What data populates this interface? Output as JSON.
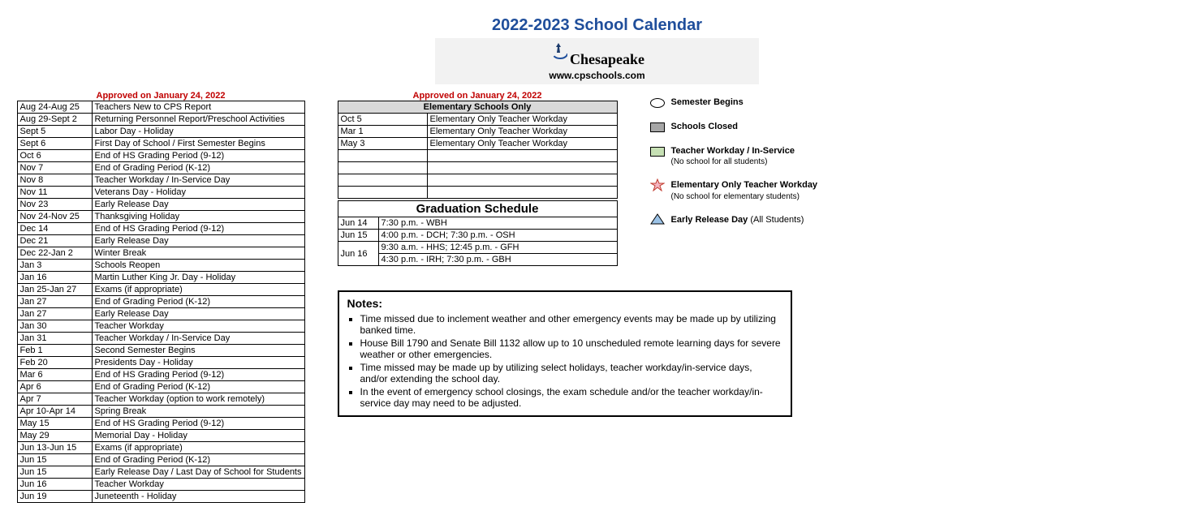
{
  "header": {
    "title": "2022-2023 School Calendar",
    "logo_text": "Chesapeake",
    "site": "www.cpschools.com",
    "approved": "Approved on January 24, 2022"
  },
  "main_events": [
    {
      "date": "Aug 24-Aug 25",
      "desc": "Teachers New to CPS Report"
    },
    {
      "date": "Aug 29-Sept 2",
      "desc": "Returning Personnel Report/Preschool Activities"
    },
    {
      "date": "Sept 5",
      "desc": "Labor Day - Holiday"
    },
    {
      "date": "Sept 6",
      "desc": "First Day of School / First Semester Begins"
    },
    {
      "date": "Oct 6",
      "desc": "End of HS Grading Period (9-12)"
    },
    {
      "date": "Nov 7",
      "desc": "End of Grading Period (K-12)"
    },
    {
      "date": "Nov 8",
      "desc": "Teacher Workday / In-Service Day"
    },
    {
      "date": "Nov 11",
      "desc": "Veterans Day - Holiday"
    },
    {
      "date": "Nov 23",
      "desc": "Early Release Day"
    },
    {
      "date": "Nov 24-Nov 25",
      "desc": "Thanksgiving Holiday"
    },
    {
      "date": "Dec 14",
      "desc": "End of HS Grading Period (9-12)"
    },
    {
      "date": "Dec 21",
      "desc": "Early Release Day"
    },
    {
      "date": "Dec 22-Jan 2",
      "desc": "Winter Break"
    },
    {
      "date": "Jan 3",
      "desc": "Schools Reopen"
    },
    {
      "date": "Jan 16",
      "desc": "Martin Luther King Jr. Day - Holiday"
    },
    {
      "date": "Jan 25-Jan 27",
      "desc": "Exams (if appropriate)"
    },
    {
      "date": "Jan 27",
      "desc": "End of Grading Period (K-12)"
    },
    {
      "date": "Jan 27",
      "desc": "Early Release Day"
    },
    {
      "date": "Jan 30",
      "desc": "Teacher Workday"
    },
    {
      "date": "Jan 31",
      "desc": "Teacher Workday / In-Service Day"
    },
    {
      "date": "Feb 1",
      "desc": "Second Semester Begins"
    },
    {
      "date": "Feb 20",
      "desc": "Presidents Day - Holiday"
    },
    {
      "date": "Mar 6",
      "desc": "End of HS Grading Period (9-12)"
    },
    {
      "date": "Apr 6",
      "desc": "End of Grading Period (K-12)"
    },
    {
      "date": "Apr 7",
      "desc": "Teacher Workday (option to work remotely)"
    },
    {
      "date": "Apr 10-Apr 14",
      "desc": "Spring Break"
    },
    {
      "date": "May 15",
      "desc": "End of HS Grading Period (9-12)"
    },
    {
      "date": "May 29",
      "desc": "Memorial Day - Holiday"
    },
    {
      "date": "Jun 13-Jun 15",
      "desc": "Exams (if appropriate)"
    },
    {
      "date": "Jun 15",
      "desc": "End of Grading Period (K-12)"
    },
    {
      "date": "Jun 15",
      "desc": "Early Release Day / Last Day of School for Students"
    },
    {
      "date": "Jun 16",
      "desc": "Teacher Workday"
    },
    {
      "date": "Jun 19",
      "desc": "Juneteenth - Holiday"
    }
  ],
  "elementary": {
    "header": "Elementary Schools Only",
    "rows": [
      {
        "date": "Oct 5",
        "desc": "Elementary Only Teacher Workday"
      },
      {
        "date": "Mar 1",
        "desc": "Elementary Only Teacher Workday"
      },
      {
        "date": "May 3",
        "desc": "Elementary Only Teacher Workday"
      }
    ],
    "blank_rows": 4
  },
  "graduation": {
    "header": "Graduation Schedule",
    "rows": [
      {
        "date": "Jun 14",
        "desc": "7:30 p.m. - WBH",
        "rowspan": 1
      },
      {
        "date": "Jun 15",
        "desc": "4:00 p.m. - DCH; 7:30 p.m. - OSH",
        "rowspan": 1
      },
      {
        "date": "Jun 16",
        "desc": "9:30 a.m. - HHS; 12:45 p.m. - GFH",
        "rowspan": 2,
        "desc2": "4:30 p.m. - IRH; 7:30 p.m. - GBH"
      }
    ]
  },
  "legend": [
    {
      "icon": "oval",
      "label": "Semester Begins",
      "sub": ""
    },
    {
      "icon": "gray",
      "label": "Schools Closed",
      "sub": ""
    },
    {
      "icon": "green",
      "label": "Teacher Workday / In-Service",
      "sub": "(No school for all students)"
    },
    {
      "icon": "star",
      "label": "Elementary Only Teacher Workday",
      "sub": "(No school for elementary students)"
    },
    {
      "icon": "tri",
      "label": "Early Release Day",
      "label_suffix": " (All Students)",
      "sub": ""
    }
  ],
  "notes": {
    "header": "Notes:",
    "items": [
      "Time missed due to inclement weather and other emergency events may be made up by utilizing banked time.",
      "House Bill 1790 and Senate Bill 1132 allow up to 10 unscheduled remote learning days for severe weather or other emergencies.",
      "Time missed may be made up by utilizing select holidays, teacher workday/in-service days, and/or extending the school day.",
      "In the event of emergency school closings, the exam schedule and/or the teacher workday/in-service day may need to be adjusted."
    ]
  }
}
